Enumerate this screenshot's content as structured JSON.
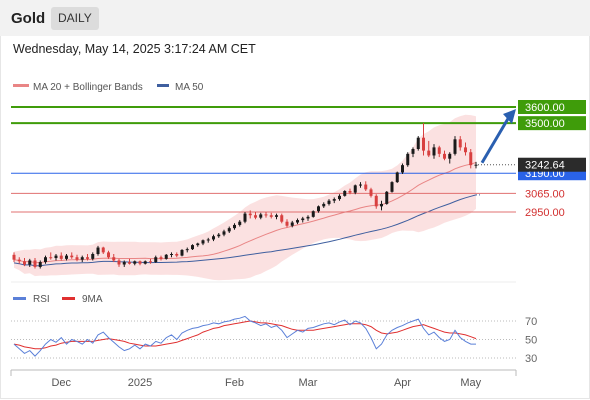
{
  "header": {
    "title": "Gold",
    "timeframe": "DAILY"
  },
  "datetime": "Wednesday, May 14, 2025 3:17:24 AM CET",
  "colors": {
    "bull": "#1a1a1a",
    "bear": "#d84040",
    "support_blue": "#2a63e8",
    "target_green": "#3f9c0a",
    "level_red": "#e07070",
    "ma20": "#e98585",
    "ma50": "#3f5f9f",
    "band_fill": "#f7c9c9",
    "rsi": "#5b80d8",
    "rsi_ma": "#e03030",
    "arrow": "#2a5fb0",
    "price_tag": "#2b2b2b"
  },
  "chart_data": [
    {
      "type": "candlestick",
      "title": "Gold",
      "timeframe": "DAILY",
      "legend": [
        {
          "label": "MA 20 + Bollinger Bands",
          "color": "#e98585"
        },
        {
          "label": "MA 50",
          "color": "#3f5f9f"
        }
      ],
      "x_tick_labels": [
        "Dec",
        "2025",
        "Feb",
        "Mar",
        "Apr",
        "May"
      ],
      "y_range": [
        2500,
        3700
      ],
      "current_price": "3242.64",
      "levels": [
        {
          "label": "3600.00",
          "value": 3600,
          "color": "#3f9c0a",
          "role": "target"
        },
        {
          "label": "3500.00",
          "value": 3500,
          "color": "#3f9c0a",
          "role": "target"
        },
        {
          "label": "3190.00",
          "value": 3190,
          "color": "#2a63e8",
          "role": "support"
        },
        {
          "label": "3065.00",
          "value": 3065,
          "color": "#e07070",
          "role": "support"
        },
        {
          "label": "2950.00",
          "value": 2950,
          "color": "#e07070",
          "role": "support"
        }
      ],
      "candles": [
        [
          2685,
          2700,
          2640,
          2655
        ],
        [
          2655,
          2670,
          2630,
          2645
        ],
        [
          2645,
          2665,
          2615,
          2625
        ],
        [
          2625,
          2660,
          2610,
          2650
        ],
        [
          2650,
          2665,
          2600,
          2610
        ],
        [
          2610,
          2650,
          2600,
          2640
        ],
        [
          2640,
          2680,
          2630,
          2670
        ],
        [
          2670,
          2700,
          2655,
          2665
        ],
        [
          2665,
          2690,
          2650,
          2680
        ],
        [
          2680,
          2700,
          2650,
          2660
        ],
        [
          2660,
          2690,
          2650,
          2680
        ],
        [
          2680,
          2700,
          2660,
          2670
        ],
        [
          2670,
          2685,
          2645,
          2655
        ],
        [
          2655,
          2680,
          2640,
          2670
        ],
        [
          2670,
          2690,
          2650,
          2660
        ],
        [
          2660,
          2700,
          2650,
          2690
        ],
        [
          2690,
          2740,
          2680,
          2730
        ],
        [
          2730,
          2735,
          2690,
          2700
        ],
        [
          2700,
          2710,
          2660,
          2670
        ],
        [
          2670,
          2690,
          2640,
          2650
        ],
        [
          2650,
          2660,
          2610,
          2625
        ],
        [
          2625,
          2650,
          2610,
          2640
        ],
        [
          2640,
          2660,
          2625,
          2630
        ],
        [
          2630,
          2650,
          2620,
          2645
        ],
        [
          2645,
          2650,
          2620,
          2630
        ],
        [
          2630,
          2650,
          2625,
          2645
        ],
        [
          2645,
          2660,
          2630,
          2640
        ],
        [
          2640,
          2680,
          2635,
          2670
        ],
        [
          2670,
          2680,
          2650,
          2660
        ],
        [
          2660,
          2690,
          2655,
          2685
        ],
        [
          2685,
          2700,
          2670,
          2690
        ],
        [
          2690,
          2700,
          2670,
          2680
        ],
        [
          2680,
          2720,
          2675,
          2715
        ],
        [
          2715,
          2730,
          2700,
          2720
        ],
        [
          2720,
          2750,
          2715,
          2745
        ],
        [
          2745,
          2760,
          2735,
          2755
        ],
        [
          2755,
          2780,
          2745,
          2775
        ],
        [
          2775,
          2790,
          2760,
          2780
        ],
        [
          2780,
          2810,
          2770,
          2800
        ],
        [
          2800,
          2820,
          2790,
          2810
        ],
        [
          2810,
          2840,
          2800,
          2830
        ],
        [
          2830,
          2860,
          2820,
          2850
        ],
        [
          2850,
          2880,
          2840,
          2870
        ],
        [
          2870,
          2900,
          2860,
          2890
        ],
        [
          2890,
          2950,
          2880,
          2940
        ],
        [
          2940,
          2960,
          2910,
          2930
        ],
        [
          2930,
          2950,
          2905,
          2915
        ],
        [
          2915,
          2945,
          2905,
          2935
        ],
        [
          2935,
          2950,
          2915,
          2930
        ],
        [
          2930,
          2945,
          2910,
          2920
        ],
        [
          2920,
          2940,
          2905,
          2930
        ],
        [
          2930,
          2940,
          2880,
          2890
        ],
        [
          2890,
          2905,
          2855,
          2865
        ],
        [
          2865,
          2895,
          2855,
          2885
        ],
        [
          2885,
          2910,
          2875,
          2900
        ],
        [
          2900,
          2920,
          2885,
          2910
        ],
        [
          2910,
          2930,
          2895,
          2920
        ],
        [
          2920,
          2960,
          2915,
          2955
        ],
        [
          2955,
          2990,
          2945,
          2985
        ],
        [
          2985,
          3010,
          2975,
          3000
        ],
        [
          3000,
          3030,
          2990,
          3020
        ],
        [
          3020,
          3040,
          3005,
          3030
        ],
        [
          3030,
          3060,
          3020,
          3050
        ],
        [
          3050,
          3085,
          3045,
          3080
        ],
        [
          3080,
          3095,
          3060,
          3070
        ],
        [
          3070,
          3120,
          3060,
          3115
        ],
        [
          3115,
          3135,
          3100,
          3120
        ],
        [
          3120,
          3140,
          3080,
          3090
        ],
        [
          3090,
          3100,
          3040,
          3050
        ],
        [
          3050,
          3060,
          2970,
          2985
        ],
        [
          2985,
          3020,
          2960,
          3000
        ],
        [
          3000,
          3080,
          2995,
          3075
        ],
        [
          3075,
          3140,
          3070,
          3135
        ],
        [
          3135,
          3200,
          3130,
          3195
        ],
        [
          3195,
          3250,
          3185,
          3240
        ],
        [
          3240,
          3320,
          3230,
          3310
        ],
        [
          3310,
          3350,
          3290,
          3340
        ],
        [
          3340,
          3420,
          3330,
          3410
        ],
        [
          3410,
          3500,
          3300,
          3330
        ],
        [
          3330,
          3390,
          3290,
          3300
        ],
        [
          3300,
          3370,
          3280,
          3350
        ],
        [
          3350,
          3360,
          3290,
          3310
        ],
        [
          3310,
          3330,
          3270,
          3280
        ],
        [
          3280,
          3320,
          3250,
          3310
        ],
        [
          3310,
          3420,
          3300,
          3400
        ],
        [
          3400,
          3420,
          3330,
          3350
        ],
        [
          3350,
          3380,
          3300,
          3320
        ],
        [
          3320,
          3340,
          3220,
          3240
        ],
        [
          3240,
          3260,
          3220,
          3242.64
        ]
      ]
    },
    {
      "type": "line",
      "title": "RSI",
      "series": [
        {
          "name": "RSI",
          "color": "#5b80d8"
        },
        {
          "name": "9MA",
          "color": "#e03030"
        }
      ],
      "y_ticks": [
        70,
        50,
        30
      ],
      "y_range": [
        20,
        80
      ],
      "rsi": [
        45,
        40,
        35,
        38,
        32,
        38,
        45,
        50,
        47,
        52,
        45,
        50,
        48,
        45,
        50,
        46,
        55,
        58,
        52,
        47,
        42,
        38,
        40,
        44,
        40,
        45,
        43,
        48,
        46,
        52,
        55,
        50,
        57,
        60,
        62,
        63,
        65,
        66,
        68,
        67,
        69,
        70,
        72,
        73,
        75,
        70,
        68,
        65,
        67,
        63,
        65,
        60,
        52,
        56,
        60,
        58,
        62,
        63,
        65,
        67,
        68,
        66,
        69,
        71,
        66,
        70,
        68,
        62,
        52,
        40,
        45,
        55,
        60,
        63,
        65,
        68,
        70,
        72,
        62,
        55,
        58,
        52,
        48,
        50,
        60,
        52,
        48,
        45,
        45
      ],
      "rsi_ma": [
        45,
        44,
        42,
        41,
        40,
        40,
        41,
        43,
        44,
        46,
        47,
        48,
        48,
        48,
        48,
        48,
        49,
        50,
        51,
        50,
        49,
        48,
        46,
        45,
        44,
        43,
        43,
        43,
        44,
        45,
        46,
        47,
        49,
        51,
        53,
        55,
        58,
        60,
        62,
        63,
        65,
        66,
        67,
        68,
        69,
        70,
        69,
        68,
        68,
        67,
        66,
        65,
        63,
        61,
        60,
        60,
        60,
        60,
        61,
        62,
        63,
        64,
        65,
        66,
        67,
        67,
        67,
        66,
        64,
        60,
        57,
        56,
        57,
        58,
        60,
        62,
        64,
        65,
        66,
        64,
        62,
        60,
        58,
        57,
        57,
        56,
        55,
        53,
        51
      ]
    }
  ]
}
